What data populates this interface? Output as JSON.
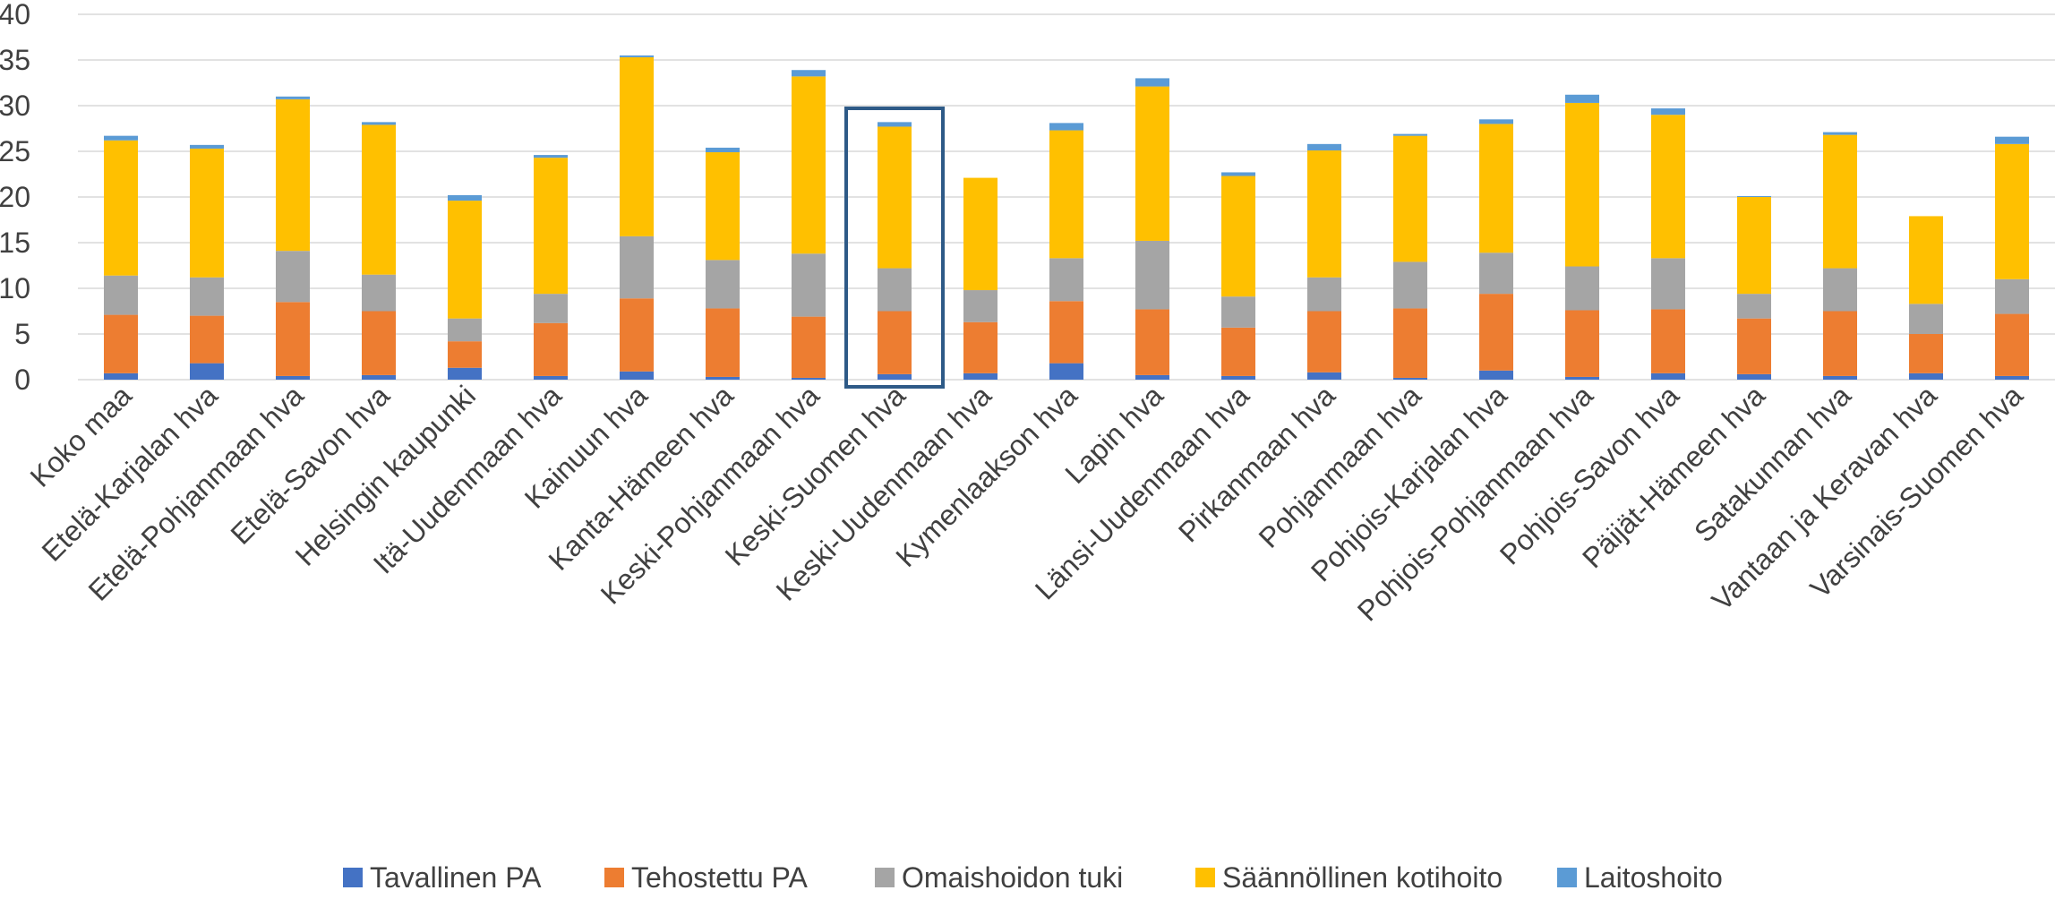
{
  "chart_data": {
    "type": "bar",
    "stacked": true,
    "ylim": [
      0,
      40
    ],
    "yticks": [
      0,
      5,
      10,
      15,
      20,
      25,
      30,
      35,
      40
    ],
    "grid": true,
    "legend_position": "bottom",
    "categories": [
      "Koko maa",
      "Etelä-Karjalan hva",
      "Etelä-Pohjanmaan hva",
      "Etelä-Savon hva",
      "Helsingin kaupunki",
      "Itä-Uudenmaan hva",
      "Kainuun hva",
      "Kanta-Hämeen hva",
      "Keski-Pohjanmaan hva",
      "Keski-Suomen hva",
      "Keski-Uudenmaan hva",
      "Kymenlaakson hva",
      "Lapin hva",
      "Länsi-Uudenmaan hva",
      "Pirkanmaan hva",
      "Pohjanmaan hva",
      "Pohjois-Karjalan hva",
      "Pohjois-Pohjanmaan hva",
      "Pohjois-Savon hva",
      "Päijät-Hämeen hva",
      "Satakunnan hva",
      "Vantaan ja Keravan hva",
      "Varsinais-Suomen hva"
    ],
    "highlighted_category": "Keski-Suomen hva",
    "series": [
      {
        "name": "Tavallinen PA",
        "color": "#4472C4",
        "values": [
          0.7,
          1.8,
          0.4,
          0.5,
          1.3,
          0.4,
          0.9,
          0.3,
          0.2,
          0.6,
          0.7,
          1.8,
          0.5,
          0.4,
          0.8,
          0.2,
          1.0,
          0.3,
          0.7,
          0.6,
          0.4,
          0.7,
          0.4
        ]
      },
      {
        "name": "Tehostettu PA",
        "color": "#ED7D31",
        "values": [
          6.4,
          5.2,
          8.1,
          7.0,
          2.9,
          5.8,
          8.0,
          7.5,
          6.7,
          6.9,
          5.6,
          6.8,
          7.2,
          5.3,
          6.7,
          7.6,
          8.4,
          7.3,
          7.0,
          6.1,
          7.1,
          4.3,
          6.8
        ]
      },
      {
        "name": "Omaishoidon tuki",
        "color": "#A5A5A5",
        "values": [
          4.3,
          4.2,
          5.6,
          4.0,
          2.5,
          3.2,
          6.8,
          5.3,
          6.9,
          4.7,
          3.5,
          4.7,
          7.5,
          3.4,
          3.7,
          5.1,
          4.5,
          4.8,
          5.6,
          2.7,
          4.7,
          3.3,
          3.8
        ]
      },
      {
        "name": "Säännöllinen kotihoito",
        "color": "#FFC000",
        "values": [
          14.8,
          14.1,
          16.6,
          16.4,
          12.9,
          14.9,
          19.6,
          11.8,
          19.4,
          15.5,
          12.3,
          14.0,
          16.9,
          13.2,
          13.9,
          13.8,
          14.1,
          17.9,
          15.7,
          10.6,
          14.6,
          9.6,
          14.8
        ]
      },
      {
        "name": "Laitoshoito",
        "color": "#5B9BD5",
        "values": [
          0.5,
          0.4,
          0.3,
          0.3,
          0.6,
          0.3,
          0.2,
          0.5,
          0.7,
          0.5,
          0.0,
          0.8,
          0.9,
          0.4,
          0.7,
          0.2,
          0.5,
          0.9,
          0.7,
          0.1,
          0.3,
          0.0,
          0.8
        ]
      }
    ]
  }
}
